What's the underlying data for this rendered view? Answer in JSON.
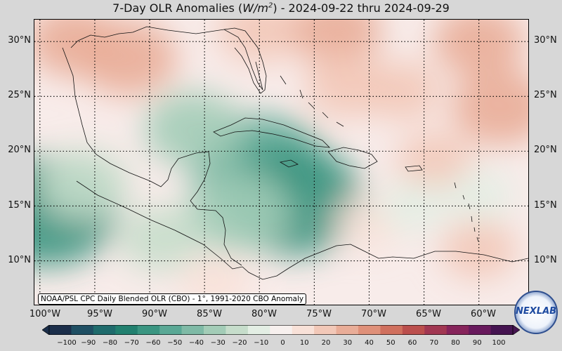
{
  "title": {
    "prefix": "7-Day OLR Anomalies (",
    "unit_base": "W/m",
    "unit_exp": "2",
    "suffix": ") - 2024-09-22 thru 2024-09-29"
  },
  "latitude_labels": [
    "30°N",
    "25°N",
    "20°N",
    "15°N",
    "10°N"
  ],
  "longitude_labels": [
    "100°W",
    "95°W",
    "90°W",
    "85°W",
    "80°W",
    "75°W",
    "70°W",
    "65°W",
    "60°W"
  ],
  "attribution": "NOAA/PSL CPC Daily Blended OLR (CBO) - 1°, 1991-2020 CBO Anomaly",
  "colorbar": {
    "ticks": [
      "−100",
      "−90",
      "−80",
      "−70",
      "−60",
      "−50",
      "−40",
      "−30",
      "−20",
      "−10",
      "0",
      "10",
      "20",
      "30",
      "40",
      "50",
      "60",
      "70",
      "80",
      "90",
      "100"
    ],
    "range": [
      -100,
      100
    ],
    "colors": [
      "#1b2e4a",
      "#1f4f63",
      "#1f6b6c",
      "#22806f",
      "#3a9581",
      "#5aa895",
      "#7fbaa6",
      "#a3ccb7",
      "#c6ddcb",
      "#e3eee4",
      "#f7f0ee",
      "#f8e1d8",
      "#f2c8b8",
      "#e9ad98",
      "#df9079",
      "#d0705e",
      "#bb4f4d",
      "#a13752",
      "#86245b",
      "#681a5d",
      "#451451"
    ]
  },
  "map_data": {
    "region": "Gulf of Mexico, Caribbean and Central America",
    "lat_range": [
      6,
      32
    ],
    "lon_range": [
      -100.5,
      -55.5
    ],
    "grid": true,
    "anomalies": [
      {
        "lon": -99.5,
        "lat": 14.5,
        "value": -60
      },
      {
        "lon": -80,
        "lat": 18.5,
        "value": -55
      },
      {
        "lon": -77,
        "lat": 15.5,
        "value": -60
      },
      {
        "lon": -82,
        "lat": 14.5,
        "value": -35
      },
      {
        "lon": -86,
        "lat": 22,
        "value": -30
      },
      {
        "lon": -89,
        "lat": 12,
        "value": -20
      },
      {
        "lon": -96,
        "lat": 17,
        "value": -25
      },
      {
        "lon": -92,
        "lat": 28.5,
        "value": 30
      },
      {
        "lon": -97,
        "lat": 30,
        "value": 25
      },
      {
        "lon": -80,
        "lat": 31,
        "value": 20
      },
      {
        "lon": -73,
        "lat": 31,
        "value": 25
      },
      {
        "lon": -60,
        "lat": 30,
        "value": 25
      },
      {
        "lon": -58,
        "lat": 24,
        "value": 30
      },
      {
        "lon": -72,
        "lat": 26,
        "value": 20
      },
      {
        "lon": -67,
        "lat": 25.5,
        "value": 15
      },
      {
        "lon": -64,
        "lat": 19,
        "value": 15
      },
      {
        "lon": -60,
        "lat": 11,
        "value": 15
      },
      {
        "lon": -70,
        "lat": 13.5,
        "value": 10
      },
      {
        "lon": -84,
        "lat": 8,
        "value": 10
      },
      {
        "lon": -66,
        "lat": 15,
        "value": -10
      },
      {
        "lon": -60,
        "lat": 16,
        "value": -10
      }
    ]
  }
}
